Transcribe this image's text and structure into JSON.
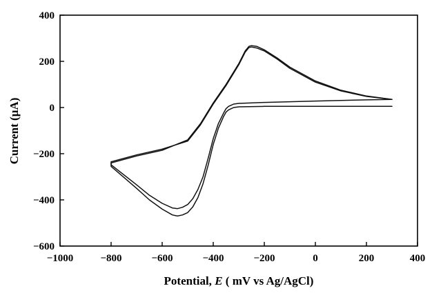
{
  "chart_data": {
    "type": "line",
    "title": "",
    "xlabel": {
      "prefix": "Potential, ",
      "symbol": "E",
      "suffix": " ( mV vs Ag/AgCl)"
    },
    "ylabel": "Current (µA)",
    "xlim": [
      -1000,
      400
    ],
    "ylim": [
      -600,
      400
    ],
    "xticks": [
      -1000,
      -800,
      -600,
      -400,
      -200,
      0,
      200,
      400
    ],
    "yticks": [
      -600,
      -400,
      -200,
      0,
      200,
      400
    ],
    "grid": false,
    "series": [
      {
        "x": [
          300,
          200,
          100,
          0,
          -100,
          -150,
          -200,
          -230,
          -250,
          -260,
          -275,
          -300,
          -350,
          -400,
          -450,
          -500,
          -600,
          -700,
          -800,
          -800,
          -700,
          -650,
          -600,
          -560,
          -540,
          -520,
          -500,
          -480,
          -460,
          -440,
          -420,
          -400,
          -380,
          -360,
          -350,
          -340,
          -330,
          -320,
          -300,
          -200,
          0,
          200,
          300
        ],
        "y": [
          35,
          50,
          75,
          115,
          175,
          215,
          250,
          265,
          268,
          265,
          245,
          190,
          100,
          20,
          -70,
          -140,
          -185,
          -210,
          -240,
          -255,
          -350,
          -400,
          -440,
          -465,
          -470,
          -465,
          -455,
          -430,
          -390,
          -330,
          -250,
          -160,
          -90,
          -40,
          -20,
          -10,
          -5,
          0,
          3,
          5,
          5,
          5,
          5
        ]
      },
      {
        "x": [
          300,
          200,
          100,
          0,
          -100,
          -150,
          -200,
          -230,
          -250,
          -260,
          -275,
          -300,
          -350,
          -400,
          -450,
          -500,
          -600,
          -700,
          -800,
          -800,
          -700,
          -650,
          -600,
          -560,
          -540,
          -520,
          -500,
          -480,
          -460,
          -440,
          -420,
          -400,
          -380,
          -360,
          -350,
          -340,
          -330,
          -320,
          -300,
          -200,
          0,
          200,
          300
        ],
        "y": [
          35,
          48,
          72,
          110,
          170,
          210,
          245,
          258,
          262,
          260,
          240,
          185,
          95,
          15,
          -75,
          -145,
          -180,
          -205,
          -235,
          -248,
          -335,
          -380,
          -415,
          -435,
          -438,
          -432,
          -420,
          -395,
          -355,
          -300,
          -220,
          -135,
          -70,
          -25,
          -5,
          5,
          10,
          15,
          18,
          22,
          28,
          33,
          35
        ]
      }
    ]
  }
}
